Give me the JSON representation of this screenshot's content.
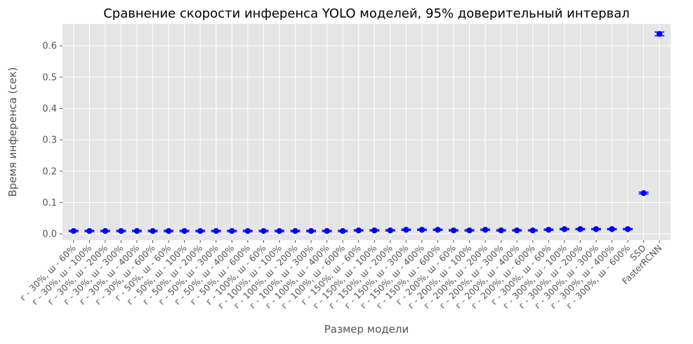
{
  "chart_data": {
    "type": "scatter",
    "title": "Сравнение скорости инференса YOLO моделей, 95% доверительный интервал",
    "xlabel": "Размер модели",
    "ylabel": "Время инференса (сек)",
    "ylim": [
      -0.02,
      0.67
    ],
    "yticks": [
      0.0,
      0.1,
      0.2,
      0.3,
      0.4,
      0.5,
      0.6
    ],
    "grid": true,
    "categories": [
      "г - 30%, ш - 60%",
      "г - 30%, ш - 100%",
      "г - 30%, ш - 200%",
      "г - 30%, ш - 300%",
      "г - 30%, ш - 400%",
      "г - 30%, ш - 600%",
      "г - 50%, ш - 60%",
      "г - 50%, ш - 100%",
      "г - 50%, ш - 200%",
      "г - 50%, ш - 300%",
      "г - 50%, ш - 400%",
      "г - 50%, ш - 600%",
      "г - 100%, ш - 60%",
      "г - 100%, ш - 100%",
      "г - 100%, ш - 200%",
      "г - 100%, ш - 300%",
      "г - 100%, ш - 400%",
      "г - 100%, ш - 600%",
      "г - 150%, ш - 60%",
      "г - 150%, ш - 100%",
      "г - 150%, ш - 200%",
      "г - 150%, ш - 300%",
      "г - 150%, ш - 400%",
      "г - 150%, ш - 600%",
      "г - 200%, ш - 60%",
      "г - 200%, ш - 100%",
      "г - 200%, ш - 200%",
      "г - 200%, ш - 300%",
      "г - 200%, ш - 400%",
      "г - 200%, ш - 600%",
      "г - 300%, ш - 60%",
      "г - 300%, ш - 100%",
      "г - 300%, ш - 200%",
      "г - 300%, ш - 300%",
      "г - 300%, ш - 400%",
      "г - 300%, ш - 600%",
      "SSD",
      "FasterRCNN"
    ],
    "values": [
      0.009,
      0.009,
      0.009,
      0.009,
      0.009,
      0.009,
      0.009,
      0.009,
      0.009,
      0.009,
      0.009,
      0.009,
      0.009,
      0.009,
      0.009,
      0.009,
      0.009,
      0.009,
      0.011,
      0.011,
      0.011,
      0.013,
      0.013,
      0.013,
      0.011,
      0.011,
      0.013,
      0.011,
      0.011,
      0.011,
      0.013,
      0.015,
      0.015,
      0.015,
      0.015,
      0.015,
      0.13,
      0.638
    ],
    "error": [
      0.002,
      0.002,
      0.002,
      0.002,
      0.002,
      0.002,
      0.002,
      0.002,
      0.002,
      0.002,
      0.002,
      0.002,
      0.002,
      0.002,
      0.002,
      0.002,
      0.002,
      0.002,
      0.002,
      0.002,
      0.002,
      0.002,
      0.002,
      0.002,
      0.002,
      0.002,
      0.002,
      0.002,
      0.002,
      0.002,
      0.002,
      0.002,
      0.002,
      0.002,
      0.002,
      0.002,
      0.003,
      0.006
    ],
    "colors": {
      "marker": "#0000ff",
      "background": "#e5e5e5",
      "grid": "#ffffff",
      "text": "#555555",
      "title": "#000000"
    }
  }
}
